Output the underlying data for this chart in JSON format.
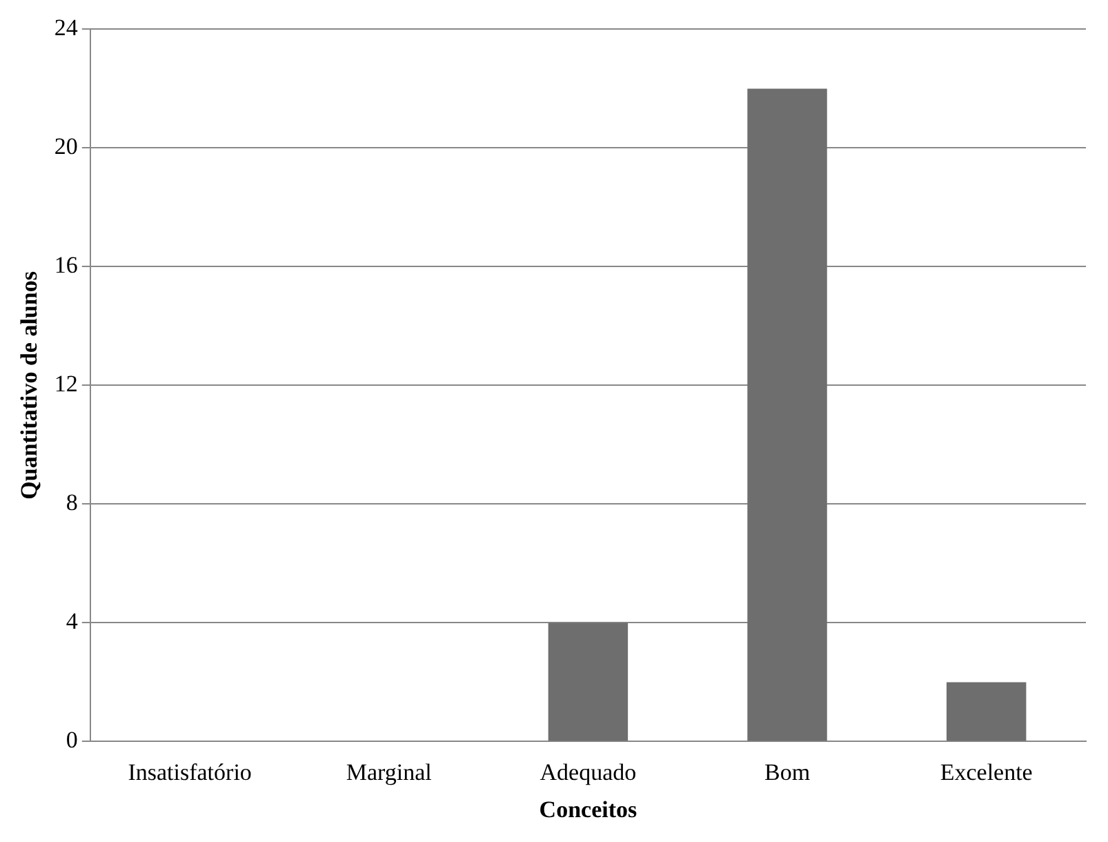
{
  "chart_data": {
    "type": "bar",
    "xlabel": "Conceitos",
    "ylabel": "Quantitativo de alunos",
    "categories": [
      "Insatisfatório",
      "Marginal",
      "Adequado",
      "Bom",
      "Excelente"
    ],
    "values": [
      0,
      0,
      4,
      22,
      2
    ],
    "color": "#6e6e6e",
    "ylim": [
      0,
      24
    ],
    "yticks": [
      0,
      4,
      8,
      12,
      16,
      20,
      24
    ],
    "grid": "y",
    "legend": false
  }
}
